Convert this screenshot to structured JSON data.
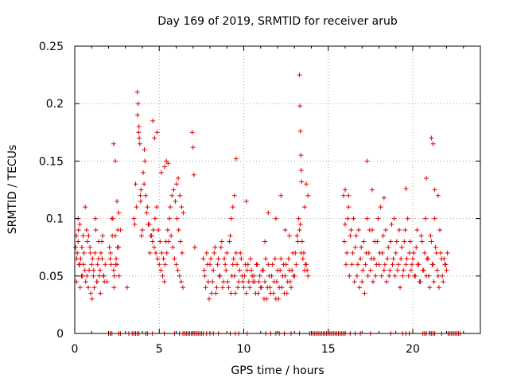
{
  "chart_data": {
    "type": "scatter",
    "title": "Day 169 of 2019, SRMTID for receiver arub",
    "xlabel": "GPS time / hours",
    "ylabel": "SRMTID / TECUs",
    "xlim": [
      0,
      24
    ],
    "ylim": [
      0,
      0.25
    ],
    "xticks": [
      0,
      5,
      10,
      15,
      20
    ],
    "xtick_labels": [
      "0",
      "5",
      "10",
      "15",
      "20"
    ],
    "yticks": [
      0,
      0.05,
      0.1,
      0.15,
      0.2,
      0.25
    ],
    "ytick_labels": [
      "0",
      "0.05",
      "0.1",
      "0.15",
      "0.2",
      "0.25"
    ],
    "grid": true,
    "marker": "+",
    "color": "#e00000",
    "series": [
      {
        "name": "SRMTID",
        "x": [
          0.05,
          0.1,
          0.15,
          0.2,
          0.25,
          0.3,
          0.35,
          0.4,
          0.5,
          0.6,
          0.7,
          0.8,
          0.9,
          1.0,
          1.1,
          1.2,
          1.3,
          1.4,
          1.5,
          1.6,
          1.7,
          1.8,
          1.9,
          2.1,
          2.2,
          2.3,
          2.4,
          2.5,
          2.6,
          2.7,
          0.1,
          0.2,
          0.3,
          0.45,
          0.55,
          0.65,
          0.75,
          0.85,
          0.95,
          1.05,
          1.15,
          1.25,
          1.35,
          1.45,
          1.55,
          1.65,
          1.75,
          2.05,
          2.15,
          2.25,
          2.35,
          2.45,
          2.55,
          0.12,
          0.22,
          0.32,
          0.42,
          0.52,
          0.62,
          0.72,
          0.82,
          0.92,
          1.02,
          1.12,
          1.22,
          1.32,
          1.42,
          1.52,
          1.62,
          1.72,
          2.12,
          2.22,
          2.32,
          2.42,
          2.52,
          2.62,
          2.3,
          2.4,
          2.5,
          2.6,
          3.1,
          3.5,
          3.6,
          3.7,
          3.75,
          3.8,
          3.85,
          3.9,
          3.95,
          4.0,
          4.1,
          4.2,
          4.3,
          4.4,
          4.5,
          4.6,
          4.7,
          4.8,
          4.9,
          5.0,
          5.1,
          5.2,
          5.3,
          5.4,
          5.5,
          5.6,
          5.7,
          5.8,
          5.9,
          6.0,
          6.1,
          6.2,
          6.3,
          6.4,
          3.55,
          3.65,
          3.72,
          3.82,
          3.92,
          4.05,
          4.15,
          4.25,
          4.35,
          4.45,
          4.55,
          4.65,
          4.75,
          4.85,
          4.95,
          5.05,
          5.15,
          5.25,
          5.35,
          5.45,
          5.55,
          5.65,
          5.75,
          5.85,
          5.95,
          6.05,
          6.15,
          6.25,
          6.35,
          3.78,
          3.88,
          4.12,
          4.62,
          4.72,
          4.88,
          5.12,
          5.32,
          5.42,
          5.52,
          6.02,
          6.12,
          6.22,
          6.32,
          6.42,
          6.95,
          7.0,
          7.05,
          7.1,
          7.6,
          7.7,
          7.8,
          7.9,
          8.0,
          8.1,
          8.2,
          8.3,
          8.4,
          8.5,
          8.6,
          8.7,
          8.8,
          8.9,
          9.0,
          9.1,
          9.2,
          9.3,
          9.4,
          9.5,
          9.6,
          9.7,
          9.8,
          9.9,
          10.0,
          10.1,
          10.2,
          10.3,
          10.4,
          10.5,
          7.65,
          7.75,
          7.85,
          7.95,
          8.05,
          8.15,
          8.25,
          8.35,
          8.45,
          8.55,
          8.65,
          8.75,
          8.85,
          8.95,
          9.05,
          9.15,
          9.25,
          9.35,
          9.45,
          9.55,
          9.65,
          9.75,
          9.85,
          9.95,
          10.05,
          10.15,
          10.25,
          10.35,
          10.45,
          10.55,
          10.6,
          10.7,
          10.8,
          10.9,
          11.0,
          11.1,
          11.2,
          11.3,
          11.4,
          11.5,
          11.6,
          11.7,
          11.8,
          11.9,
          12.0,
          12.1,
          12.2,
          12.3,
          12.4,
          12.5,
          12.6,
          12.7,
          12.8,
          12.9,
          13.0,
          13.1,
          13.2,
          13.3,
          13.4,
          13.5,
          13.6,
          13.7,
          13.8,
          10.65,
          10.75,
          10.85,
          10.95,
          11.05,
          11.15,
          11.25,
          11.35,
          11.45,
          11.55,
          11.65,
          11.75,
          11.85,
          11.95,
          12.05,
          12.15,
          12.25,
          12.35,
          12.45,
          12.55,
          12.65,
          12.75,
          12.85,
          12.95,
          13.05,
          13.15,
          13.25,
          13.35,
          13.45,
          13.55,
          13.65,
          13.75,
          13.3,
          13.32,
          13.35,
          13.38,
          13.4,
          13.42,
          9.25,
          9.35,
          9.45,
          9.55,
          10.15,
          11.25,
          11.45,
          11.9,
          12.2,
          12.45,
          12.7,
          13.6,
          13.7,
          13.8,
          15.9,
          16.0,
          16.1,
          16.2,
          16.3,
          16.4,
          16.5,
          16.6,
          16.7,
          16.8,
          16.9,
          17.0,
          17.1,
          17.2,
          17.3,
          17.4,
          17.5,
          17.6,
          17.7,
          17.8,
          17.9,
          18.0,
          18.1,
          18.2,
          18.3,
          18.4,
          18.5,
          18.6,
          18.7,
          18.8,
          18.9,
          19.0,
          19.1,
          19.2,
          19.3,
          19.4,
          19.5,
          19.6,
          19.7,
          19.8,
          19.9,
          20.0,
          15.95,
          16.05,
          16.15,
          16.25,
          16.35,
          16.45,
          16.55,
          16.65,
          16.75,
          16.85,
          16.95,
          17.05,
          17.15,
          17.25,
          17.35,
          17.45,
          17.55,
          17.65,
          17.75,
          17.85,
          17.95,
          18.05,
          18.15,
          18.25,
          18.35,
          18.45,
          18.55,
          18.65,
          18.75,
          18.85,
          18.95,
          19.05,
          19.15,
          19.25,
          19.35,
          19.45,
          19.55,
          19.65,
          19.75,
          19.85,
          19.95,
          20.05,
          20.15,
          20.25,
          20.35,
          20.45,
          20.55,
          20.65,
          20.75,
          20.85,
          20.95,
          21.05,
          21.15,
          21.25,
          21.35,
          21.45,
          21.55,
          21.65,
          21.75,
          21.85,
          21.95,
          22.05,
          20.1,
          20.2,
          20.3,
          20.4,
          20.5,
          20.6,
          20.7,
          20.8,
          20.9,
          21.0,
          21.1,
          21.2,
          21.3,
          21.4,
          21.5,
          21.6,
          21.7,
          21.8,
          21.9,
          22.0,
          21.1,
          21.2,
          20.8,
          21.5,
          21.3,
          16.0,
          16.2,
          17.3,
          17.6,
          18.3,
          19.6,
          2.0,
          2.1,
          2.2,
          2.6,
          2.7,
          3.2,
          3.4,
          3.5,
          3.6,
          3.7,
          3.8,
          4.2,
          4.3,
          4.6,
          5.3,
          5.9,
          6.2,
          6.4,
          6.5,
          6.6,
          6.7,
          6.8,
          6.9,
          7.0,
          7.1,
          7.2,
          7.3,
          7.4,
          7.5,
          7.6,
          7.8,
          8.0,
          8.2,
          8.5,
          9.2,
          9.5,
          9.7,
          10.2,
          11.3,
          11.6,
          11.9,
          12.1,
          12.4,
          12.8,
          13.3,
          13.9,
          14.0,
          14.1,
          14.2,
          14.3,
          14.4,
          14.5,
          14.6,
          14.7,
          14.8,
          14.9,
          15.0,
          15.1,
          15.2,
          15.3,
          15.4,
          15.5,
          15.6,
          15.7,
          15.8,
          15.9,
          16.0,
          16.3,
          16.6,
          16.9,
          17.5,
          18.7,
          19.4,
          19.6,
          19.8,
          20.6,
          20.7,
          20.8,
          21.0,
          21.1,
          21.2,
          21.3,
          21.7,
          22.1,
          22.2,
          22.3,
          22.4,
          22.5,
          22.6,
          22.7,
          22.8
        ],
        "y": [
          0.075,
          0.045,
          0.07,
          0.08,
          0.06,
          0.095,
          0.065,
          0.05,
          0.085,
          0.055,
          0.09,
          0.04,
          0.075,
          0.06,
          0.05,
          0.07,
          0.045,
          0.065,
          0.055,
          0.08,
          0.05,
          0.06,
          0.045,
          0.065,
          0.1,
          0.055,
          0.085,
          0.06,
          0.075,
          0.09,
          0.085,
          0.1,
          0.06,
          0.05,
          0.07,
          0.045,
          0.08,
          0.055,
          0.035,
          0.065,
          0.04,
          0.09,
          0.06,
          0.05,
          0.07,
          0.085,
          0.045,
          0.075,
          0.06,
          0.1,
          0.05,
          0.065,
          0.09,
          0.065,
          0.09,
          0.04,
          0.075,
          0.06,
          0.11,
          0.05,
          0.085,
          0.07,
          0.03,
          0.055,
          0.1,
          0.045,
          0.08,
          0.035,
          0.065,
          0.05,
          0.07,
          0.085,
          0.04,
          0.06,
          0.075,
          0.05,
          0.165,
          0.15,
          0.115,
          0.105,
          0.04,
          0.1,
          0.13,
          0.21,
          0.2,
          0.18,
          0.165,
          0.115,
          0.085,
          0.09,
          0.13,
          0.12,
          0.11,
          0.095,
          0.085,
          0.08,
          0.075,
          0.07,
          0.065,
          0.06,
          0.055,
          0.05,
          0.045,
          0.08,
          0.09,
          0.1,
          0.085,
          0.075,
          0.065,
          0.06,
          0.055,
          0.05,
          0.045,
          0.04,
          0.095,
          0.11,
          0.19,
          0.17,
          0.125,
          0.14,
          0.15,
          0.105,
          0.095,
          0.07,
          0.085,
          0.09,
          0.1,
          0.11,
          0.09,
          0.08,
          0.07,
          0.065,
          0.06,
          0.07,
          0.08,
          0.11,
          0.12,
          0.125,
          0.115,
          0.1,
          0.09,
          0.08,
          0.07,
          0.175,
          0.12,
          0.16,
          0.185,
          0.17,
          0.175,
          0.14,
          0.145,
          0.15,
          0.148,
          0.13,
          0.135,
          0.12,
          0.11,
          0.105,
          0.175,
          0.162,
          0.138,
          0.075,
          0.065,
          0.05,
          0.07,
          0.045,
          0.06,
          0.035,
          0.055,
          0.075,
          0.04,
          0.065,
          0.05,
          0.08,
          0.045,
          0.06,
          0.07,
          0.04,
          0.085,
          0.05,
          0.065,
          0.035,
          0.06,
          0.045,
          0.07,
          0.05,
          0.04,
          0.06,
          0.055,
          0.045,
          0.065,
          0.05,
          0.055,
          0.04,
          0.06,
          0.03,
          0.065,
          0.045,
          0.07,
          0.035,
          0.06,
          0.05,
          0.075,
          0.04,
          0.065,
          0.055,
          0.045,
          0.08,
          0.035,
          0.06,
          0.05,
          0.07,
          0.04,
          0.055,
          0.065,
          0.045,
          0.05,
          0.035,
          0.06,
          0.04,
          0.055,
          0.045,
          0.05,
          0.035,
          0.06,
          0.045,
          0.04,
          0.055,
          0.03,
          0.065,
          0.04,
          0.05,
          0.035,
          0.06,
          0.045,
          0.03,
          0.055,
          0.04,
          0.065,
          0.05,
          0.035,
          0.06,
          0.045,
          0.055,
          0.04,
          0.07,
          0.05,
          0.06,
          0.08,
          0.09,
          0.07,
          0.065,
          0.055,
          0.06,
          0.05,
          0.045,
          0.06,
          0.035,
          0.05,
          0.04,
          0.055,
          0.045,
          0.03,
          0.06,
          0.04,
          0.05,
          0.035,
          0.065,
          0.045,
          0.03,
          0.055,
          0.04,
          0.06,
          0.05,
          0.035,
          0.065,
          0.045,
          0.055,
          0.05,
          0.07,
          0.085,
          0.1,
          0.095,
          0.08,
          0.07,
          0.06,
          0.055,
          0.225,
          0.198,
          0.176,
          0.155,
          0.142,
          0.132,
          0.1,
          0.11,
          0.12,
          0.152,
          0.115,
          0.08,
          0.105,
          0.1,
          0.12,
          0.09,
          0.085,
          0.11,
          0.13,
          0.12,
          0.12,
          0.095,
          0.07,
          0.11,
          0.085,
          0.06,
          0.1,
          0.075,
          0.05,
          0.09,
          0.065,
          0.045,
          0.08,
          0.06,
          0.1,
          0.07,
          0.055,
          0.09,
          0.065,
          0.05,
          0.08,
          0.06,
          0.11,
          0.07,
          0.055,
          0.09,
          0.065,
          0.05,
          0.08,
          0.06,
          0.1,
          0.07,
          0.055,
          0.09,
          0.065,
          0.05,
          0.08,
          0.06,
          0.1,
          0.07,
          0.055,
          0.065,
          0.08,
          0.06,
          0.1,
          0.05,
          0.09,
          0.07,
          0.045,
          0.085,
          0.06,
          0.04,
          0.075,
          0.055,
          0.035,
          0.07,
          0.05,
          0.09,
          0.065,
          0.045,
          0.08,
          0.06,
          0.1,
          0.07,
          0.05,
          0.085,
          0.06,
          0.045,
          0.075,
          0.055,
          0.095,
          0.065,
          0.05,
          0.08,
          0.06,
          0.04,
          0.075,
          0.055,
          0.09,
          0.065,
          0.05,
          0.08,
          0.06,
          0.07,
          0.05,
          0.09,
          0.06,
          0.045,
          0.08,
          0.055,
          0.1,
          0.065,
          0.05,
          0.085,
          0.06,
          0.045,
          0.075,
          0.055,
          0.04,
          0.07,
          0.05,
          0.065,
          0.06,
          0.07,
          0.05,
          0.075,
          0.06,
          0.045,
          0.085,
          0.055,
          0.07,
          0.05,
          0.065,
          0.04,
          0.08,
          0.06,
          0.1,
          0.07,
          0.05,
          0.09,
          0.065,
          0.045,
          0.06,
          0.055,
          0.17,
          0.165,
          0.135,
          0.12,
          0.125,
          0.125,
          0.12,
          0.15,
          0.125,
          0.118,
          0.126,
          0,
          0,
          0,
          0,
          0,
          0,
          0,
          0,
          0,
          0,
          0,
          0,
          0,
          0,
          0,
          0,
          0,
          0,
          0,
          0,
          0,
          0,
          0,
          0,
          0,
          0,
          0,
          0,
          0,
          0,
          0,
          0,
          0,
          0,
          0,
          0,
          0,
          0,
          0,
          0,
          0,
          0,
          0,
          0,
          0,
          0,
          0,
          0,
          0,
          0,
          0,
          0,
          0,
          0,
          0,
          0,
          0,
          0,
          0,
          0,
          0,
          0,
          0,
          0,
          0,
          0,
          0,
          0,
          0,
          0,
          0,
          0,
          0,
          0,
          0,
          0,
          0,
          0,
          0,
          0,
          0,
          0,
          0,
          0,
          0,
          0,
          0,
          0,
          0,
          0,
          0
        ]
      }
    ]
  }
}
